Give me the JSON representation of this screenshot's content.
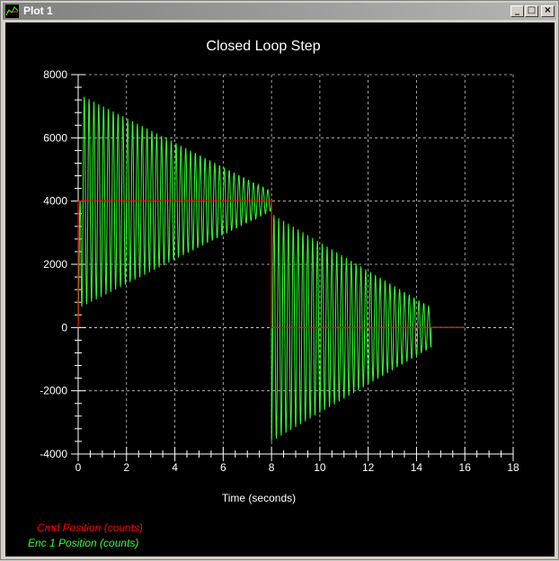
{
  "window": {
    "title": "Plot 1",
    "min_glyph": "_",
    "max_glyph": "□",
    "close_glyph": "×"
  },
  "colors": {
    "background": "#000000",
    "axis": "#ffffff",
    "grid": "#c8c8c8",
    "cmd": "#ff0000",
    "enc": "#33ff33"
  },
  "chart_data": {
    "type": "line",
    "title": "Closed Loop Step",
    "xlabel": "Time (seconds)",
    "ylabel": "",
    "xlim": [
      0,
      18
    ],
    "ylim": [
      -4000,
      8000
    ],
    "xticks": [
      0,
      2,
      4,
      6,
      8,
      10,
      12,
      14,
      16,
      18
    ],
    "yticks": [
      -4000,
      -2000,
      0,
      2000,
      4000,
      6000,
      8000
    ],
    "grid": true,
    "legend_position": "bottom-left",
    "series": [
      {
        "name": "Cmd Position (counts)",
        "color": "#ff0000",
        "x": [
          0,
          0.001,
          8.0,
          8.001,
          16.0
        ],
        "y": [
          0,
          4000,
          4000,
          0,
          0
        ]
      },
      {
        "name": "Enc 1 Position (counts)",
        "color": "#33ff33",
        "x": [
          0,
          8.0,
          8.03,
          16.0
        ],
        "y": [
          0,
          3850,
          3400,
          0
        ],
        "envelope": {
          "segments": [
            {
              "start": 0,
              "end": 8.0,
              "offset": 4000,
              "amp_start": 3400,
              "amp_end": 300
            },
            {
              "start": 8.0,
              "end": 16.0,
              "offset": 0,
              "amp_start": 3600,
              "amp_end": 0,
              "settle": 14.6
            }
          ],
          "period": 0.2
        }
      }
    ]
  }
}
